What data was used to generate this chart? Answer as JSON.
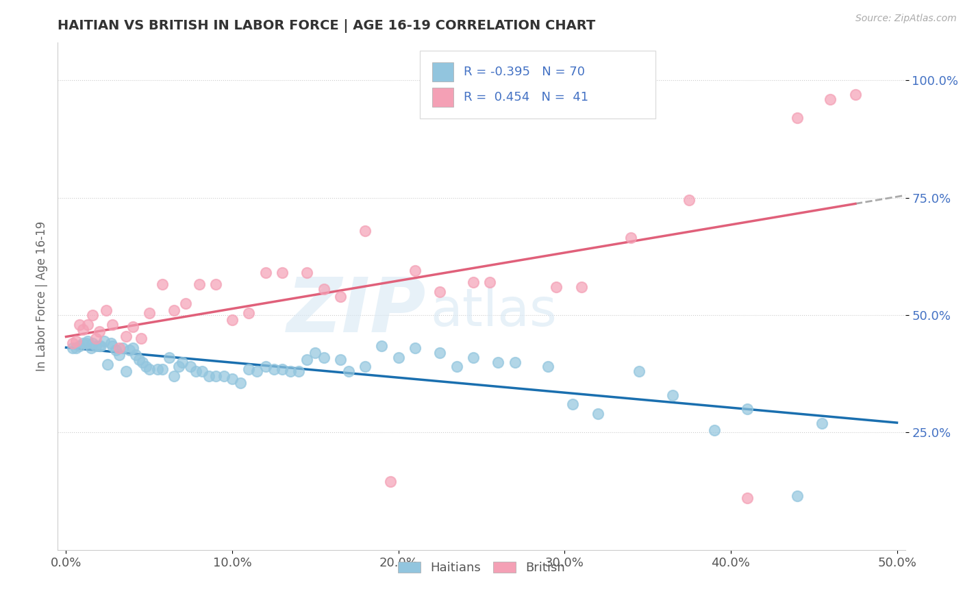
{
  "title": "HAITIAN VS BRITISH IN LABOR FORCE | AGE 16-19 CORRELATION CHART",
  "source": "Source: ZipAtlas.com",
  "ylabel": "In Labor Force | Age 16-19",
  "xlim": [
    -0.005,
    0.505
  ],
  "ylim": [
    0.0,
    1.08
  ],
  "xticks": [
    0.0,
    0.1,
    0.2,
    0.3,
    0.4,
    0.5
  ],
  "xticklabels": [
    "0.0%",
    "10.0%",
    "20.0%",
    "30.0%",
    "40.0%",
    "50.0%"
  ],
  "yticks": [
    0.25,
    0.5,
    0.75,
    1.0
  ],
  "yticklabels": [
    "25.0%",
    "50.0%",
    "75.0%",
    "100.0%"
  ],
  "legend_labels": [
    "Haitians",
    "British"
  ],
  "r_haitians": "-0.395",
  "n_haitians": "70",
  "r_british": "0.454",
  "n_british": "41",
  "haitian_color": "#92c5de",
  "british_color": "#f4a0b5",
  "haitian_line_color": "#1a6faf",
  "british_line_color": "#e0607a",
  "watermark_zip": "ZIP",
  "watermark_atlas": "atlas",
  "haitian_x": [
    0.004,
    0.006,
    0.008,
    0.01,
    0.012,
    0.013,
    0.015,
    0.016,
    0.018,
    0.02,
    0.021,
    0.023,
    0.025,
    0.027,
    0.028,
    0.03,
    0.032,
    0.034,
    0.036,
    0.038,
    0.04,
    0.042,
    0.044,
    0.046,
    0.048,
    0.05,
    0.055,
    0.058,
    0.062,
    0.065,
    0.068,
    0.07,
    0.075,
    0.078,
    0.082,
    0.086,
    0.09,
    0.095,
    0.1,
    0.105,
    0.11,
    0.115,
    0.12,
    0.125,
    0.13,
    0.135,
    0.14,
    0.145,
    0.15,
    0.155,
    0.165,
    0.17,
    0.18,
    0.19,
    0.2,
    0.21,
    0.225,
    0.235,
    0.245,
    0.26,
    0.27,
    0.29,
    0.305,
    0.32,
    0.345,
    0.365,
    0.39,
    0.41,
    0.44,
    0.455
  ],
  "haitian_y": [
    0.43,
    0.43,
    0.435,
    0.44,
    0.44,
    0.445,
    0.43,
    0.44,
    0.435,
    0.435,
    0.435,
    0.445,
    0.395,
    0.44,
    0.435,
    0.425,
    0.415,
    0.43,
    0.38,
    0.425,
    0.43,
    0.415,
    0.405,
    0.4,
    0.39,
    0.385,
    0.385,
    0.385,
    0.41,
    0.37,
    0.39,
    0.4,
    0.39,
    0.38,
    0.38,
    0.37,
    0.37,
    0.37,
    0.365,
    0.355,
    0.385,
    0.38,
    0.39,
    0.385,
    0.385,
    0.38,
    0.38,
    0.405,
    0.42,
    0.41,
    0.405,
    0.38,
    0.39,
    0.435,
    0.41,
    0.43,
    0.42,
    0.39,
    0.41,
    0.4,
    0.4,
    0.39,
    0.31,
    0.29,
    0.38,
    0.33,
    0.255,
    0.3,
    0.115,
    0.27
  ],
  "british_x": [
    0.004,
    0.006,
    0.008,
    0.01,
    0.013,
    0.016,
    0.018,
    0.02,
    0.024,
    0.028,
    0.032,
    0.036,
    0.04,
    0.045,
    0.05,
    0.058,
    0.065,
    0.072,
    0.08,
    0.09,
    0.1,
    0.11,
    0.12,
    0.13,
    0.145,
    0.155,
    0.165,
    0.18,
    0.195,
    0.21,
    0.225,
    0.245,
    0.255,
    0.295,
    0.31,
    0.34,
    0.375,
    0.41,
    0.44,
    0.46,
    0.475
  ],
  "british_y": [
    0.44,
    0.445,
    0.48,
    0.47,
    0.48,
    0.5,
    0.45,
    0.465,
    0.51,
    0.48,
    0.43,
    0.455,
    0.475,
    0.45,
    0.505,
    0.565,
    0.51,
    0.525,
    0.565,
    0.565,
    0.49,
    0.505,
    0.59,
    0.59,
    0.59,
    0.555,
    0.54,
    0.68,
    0.145,
    0.595,
    0.55,
    0.57,
    0.57,
    0.56,
    0.56,
    0.665,
    0.745,
    0.11,
    0.92,
    0.96,
    0.97
  ]
}
